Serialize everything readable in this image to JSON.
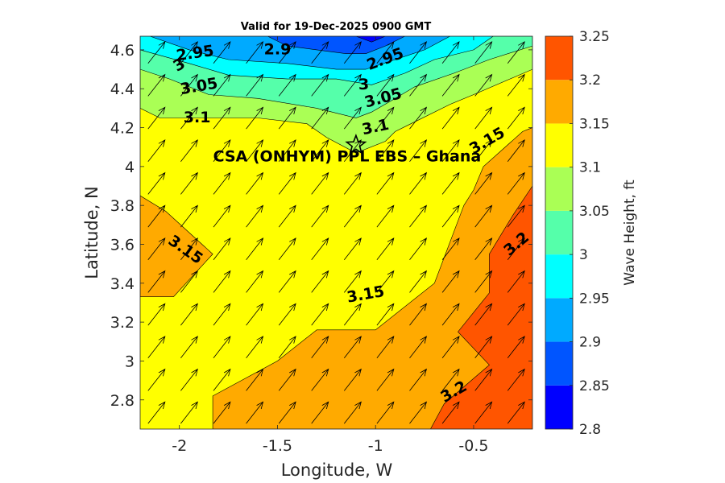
{
  "chart_data": {
    "type": "heatmap",
    "subtype": "filled-contour-with-quiver",
    "title": "Valid for 19-Dec-2025 0900 GMT",
    "xlabel": "Longitude, W",
    "ylabel": "Latitude, N",
    "xlim": [
      -2.2,
      -0.2
    ],
    "ylim": [
      2.65,
      4.67
    ],
    "xticks": [
      -2,
      -1.5,
      -1,
      -0.5
    ],
    "xtick_labels": [
      "-2",
      "-1.5",
      "-1",
      "-0.5"
    ],
    "yticks": [
      2.8,
      3.0,
      3.2,
      3.4,
      3.6,
      3.8,
      4.0,
      4.2,
      4.4,
      4.6
    ],
    "ytick_labels": [
      "2.8",
      "3",
      "3.2",
      "3.4",
      "3.6",
      "3.8",
      "4",
      "4.2",
      "4.4",
      "4.6"
    ],
    "colorbar": {
      "label": "Wave Height, ft",
      "levels": [
        2.8,
        2.85,
        2.9,
        2.95,
        3.0,
        3.05,
        3.1,
        3.15,
        3.2,
        3.25
      ],
      "labels": [
        "2.8",
        "2.85",
        "2.9",
        "2.95",
        "3",
        "3.05",
        "3.1",
        "3.15",
        "3.2",
        "3.25"
      ],
      "colors": [
        "#0000ff",
        "#0055ff",
        "#00aaff",
        "#00ffff",
        "#55ffaa",
        "#aaff55",
        "#ffff00",
        "#ffaa00",
        "#ff5500"
      ]
    },
    "contour_bands": [
      {
        "name": "band-3.15-3.2",
        "level": 3.15,
        "color": "#ffaa00",
        "points": [
          [
            -1.83,
            2.65
          ],
          [
            -1.83,
            2.82
          ],
          [
            -1.5,
            3.0
          ],
          [
            -1.3,
            3.16
          ],
          [
            -1.0,
            3.16
          ],
          [
            -0.7,
            3.4
          ],
          [
            -0.55,
            3.8
          ],
          [
            -0.5,
            3.88
          ],
          [
            -0.45,
            4.0
          ],
          [
            -0.25,
            4.18
          ],
          [
            -0.2,
            4.2
          ],
          [
            -0.2,
            2.65
          ]
        ]
      },
      {
        "name": "band-3.15-3.2-west",
        "level": 3.15,
        "color": "#ffaa00",
        "points": [
          [
            -2.2,
            3.33
          ],
          [
            -2.03,
            3.33
          ],
          [
            -1.83,
            3.55
          ],
          [
            -2.07,
            3.77
          ],
          [
            -2.2,
            3.85
          ]
        ]
      },
      {
        "name": "band-3.2-3.25",
        "level": 3.2,
        "color": "#ff5500",
        "points": [
          [
            -0.72,
            2.65
          ],
          [
            -0.65,
            2.78
          ],
          [
            -0.42,
            2.98
          ],
          [
            -0.58,
            3.15
          ],
          [
            -0.42,
            3.35
          ],
          [
            -0.42,
            3.55
          ],
          [
            -0.3,
            3.75
          ],
          [
            -0.2,
            3.9
          ],
          [
            -0.2,
            2.65
          ]
        ]
      },
      {
        "name": "band-3.05-3.1",
        "level": 3.05,
        "color": "#aaff55",
        "points": [
          [
            -2.2,
            4.67
          ],
          [
            -0.2,
            4.67
          ],
          [
            -0.2,
            4.5
          ],
          [
            -0.5,
            4.37
          ],
          [
            -0.62,
            4.32
          ],
          [
            -0.9,
            4.18
          ],
          [
            -0.95,
            4.13
          ],
          [
            -1.1,
            4.07
          ],
          [
            -1.25,
            4.15
          ],
          [
            -1.35,
            4.22
          ],
          [
            -1.6,
            4.25
          ],
          [
            -1.85,
            4.25
          ],
          [
            -2.1,
            4.25
          ],
          [
            -2.2,
            4.3
          ]
        ]
      },
      {
        "name": "band-3.0-3.05",
        "level": 3.0,
        "color": "#55ffaa",
        "points": [
          [
            -2.2,
            4.67
          ],
          [
            -0.2,
            4.67
          ],
          [
            -0.2,
            4.62
          ],
          [
            -0.42,
            4.55
          ],
          [
            -0.6,
            4.48
          ],
          [
            -0.8,
            4.41
          ],
          [
            -0.9,
            4.35
          ],
          [
            -1.02,
            4.28
          ],
          [
            -1.1,
            4.25
          ],
          [
            -1.3,
            4.3
          ],
          [
            -1.6,
            4.35
          ],
          [
            -1.85,
            4.37
          ],
          [
            -2.05,
            4.45
          ],
          [
            -2.2,
            4.5
          ]
        ]
      },
      {
        "name": "band-2.95-3.0",
        "level": 2.95,
        "color": "#00ffff",
        "points": [
          [
            -2.2,
            4.67
          ],
          [
            -0.4,
            4.67
          ],
          [
            -0.5,
            4.6
          ],
          [
            -0.7,
            4.55
          ],
          [
            -0.85,
            4.48
          ],
          [
            -1.02,
            4.42
          ],
          [
            -1.2,
            4.45
          ],
          [
            -1.45,
            4.45
          ],
          [
            -1.75,
            4.47
          ],
          [
            -1.95,
            4.53
          ],
          [
            -2.2,
            4.6
          ]
        ]
      },
      {
        "name": "band-2.9-2.95",
        "level": 2.9,
        "color": "#00aaff",
        "points": [
          [
            -2.15,
            4.67
          ],
          [
            -0.62,
            4.67
          ],
          [
            -0.75,
            4.6
          ],
          [
            -0.9,
            4.55
          ],
          [
            -1.05,
            4.5
          ],
          [
            -1.2,
            4.5
          ],
          [
            -1.45,
            4.53
          ],
          [
            -1.75,
            4.55
          ],
          [
            -1.95,
            4.6
          ]
        ]
      },
      {
        "name": "band-2.85-2.9",
        "level": 2.85,
        "color": "#0055ff",
        "points": [
          [
            -1.55,
            4.67
          ],
          [
            -0.85,
            4.67
          ],
          [
            -0.95,
            4.62
          ],
          [
            -1.05,
            4.58
          ],
          [
            -1.15,
            4.58
          ],
          [
            -1.3,
            4.6
          ],
          [
            -1.45,
            4.62
          ]
        ]
      },
      {
        "name": "band-2.8-2.85",
        "level": 2.8,
        "color": "#0000ff",
        "points": [
          [
            -1.1,
            4.67
          ],
          [
            -0.95,
            4.67
          ],
          [
            -1.02,
            4.64
          ]
        ]
      }
    ],
    "contour_labels": [
      {
        "text": "2.95",
        "x": -1.92,
        "y": 4.58,
        "rot": -8
      },
      {
        "text": "2.9",
        "x": -1.5,
        "y": 4.6,
        "rot": 0
      },
      {
        "text": "3",
        "x": -2.0,
        "y": 4.52,
        "rot": -30
      },
      {
        "text": "2.95",
        "x": -0.95,
        "y": 4.55,
        "rot": -20
      },
      {
        "text": "3.05",
        "x": -1.9,
        "y": 4.41,
        "rot": -10
      },
      {
        "text": "3",
        "x": -1.06,
        "y": 4.42,
        "rot": 0
      },
      {
        "text": "3.05",
        "x": -0.96,
        "y": 4.35,
        "rot": -15
      },
      {
        "text": "3.1",
        "x": -1.91,
        "y": 4.25,
        "rot": 0
      },
      {
        "text": "3.1",
        "x": -1.0,
        "y": 4.2,
        "rot": -12
      },
      {
        "text": "3.15",
        "x": -0.43,
        "y": 4.13,
        "rot": -30
      },
      {
        "text": "3.15",
        "x": -1.97,
        "y": 3.57,
        "rot": 35
      },
      {
        "text": "3.15",
        "x": -1.05,
        "y": 3.34,
        "rot": -10
      },
      {
        "text": "3.2",
        "x": -0.28,
        "y": 3.6,
        "rot": -40
      },
      {
        "text": "3.2",
        "x": -0.6,
        "y": 2.84,
        "rot": -30
      }
    ],
    "wind_vectors": {
      "direction_deg": 52,
      "grid_rows": 12,
      "grid_cols": 12
    },
    "annotation": {
      "text": "CSA (ONHYM) PPL EBS  – Ghana",
      "marker": "star",
      "x": -1.1,
      "y": 4.11
    }
  }
}
